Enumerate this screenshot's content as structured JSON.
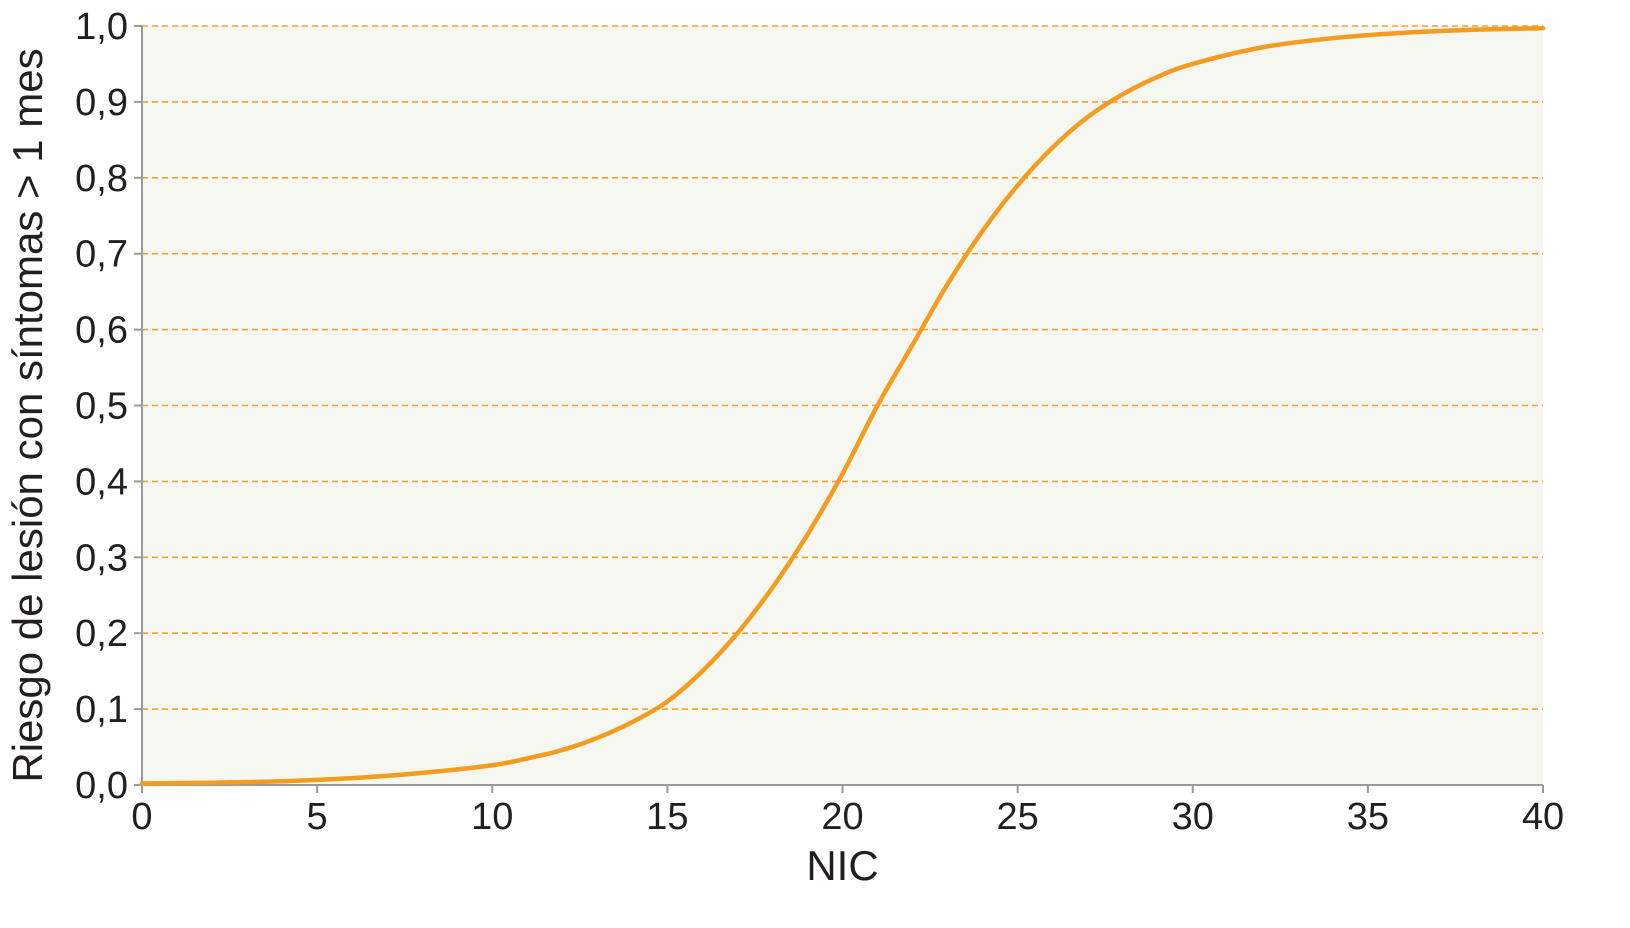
{
  "chart_data": {
    "type": "line",
    "title": "",
    "xlabel": "NIC",
    "ylabel": "Riesgo de lesión con síntomas > 1 mes",
    "xlim": [
      0,
      40
    ],
    "ylim": [
      0,
      1.0
    ],
    "x_ticks": [
      0,
      5,
      10,
      15,
      20,
      25,
      30,
      35,
      40
    ],
    "x_tick_labels": [
      "0",
      "5",
      "10",
      "15",
      "20",
      "25",
      "30",
      "35",
      "40"
    ],
    "y_ticks": [
      0,
      0.1,
      0.2,
      0.3,
      0.4,
      0.5,
      0.6,
      0.7,
      0.8,
      0.9,
      1.0
    ],
    "y_tick_labels": [
      "0,0",
      "0,1",
      "0,2",
      "0,3",
      "0,4",
      "0,5",
      "0,6",
      "0,7",
      "0,8",
      "0,9",
      "1,0"
    ],
    "grid": "horizontal dashed",
    "legend": "none",
    "colors": {
      "line": "#f39c1f",
      "grid": "#f0a030",
      "plot_background": "#f6f7f0",
      "axis": "#9a9a9a",
      "text": "#231f20"
    },
    "series": [
      {
        "x": [
          0,
          2,
          4,
          6,
          8,
          10,
          11,
          12,
          13,
          14,
          15,
          16,
          17,
          18,
          19,
          20,
          21,
          22,
          23,
          24,
          25,
          26,
          27,
          28,
          29,
          30,
          32,
          34,
          36,
          38,
          40
        ],
        "values": [
          0.002,
          0.003,
          0.005,
          0.009,
          0.016,
          0.026,
          0.035,
          0.046,
          0.062,
          0.083,
          0.11,
          0.15,
          0.2,
          0.26,
          0.33,
          0.41,
          0.5,
          0.58,
          0.66,
          0.73,
          0.79,
          0.84,
          0.88,
          0.91,
          0.933,
          0.95,
          0.972,
          0.984,
          0.991,
          0.995,
          0.997
        ]
      }
    ]
  }
}
